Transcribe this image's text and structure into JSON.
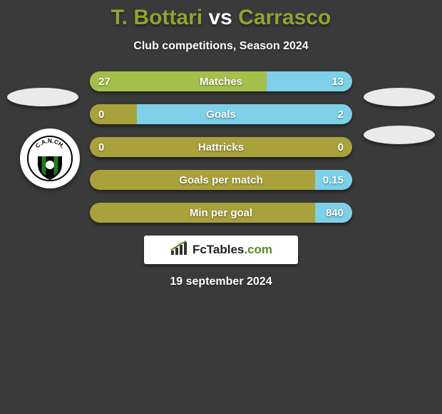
{
  "title": {
    "player1": "T. Bottari",
    "vs": "vs",
    "player2": "Carrasco",
    "player1_color": "#8fa532",
    "vs_color": "#ffffff",
    "player2_color": "#8fa532"
  },
  "subtitle": "Club competitions, Season 2024",
  "background_color": "#3a3a3a",
  "bar_colors": {
    "left_fill": "#a3c04a",
    "right_fill": "#7dd0e8",
    "base_olive": "#a9a23c"
  },
  "ellipse_color": "#eaeaea",
  "bars": [
    {
      "label": "Matches",
      "left_value": "27",
      "right_value": "13",
      "left_pct": 67.5,
      "right_pct": 32.5,
      "style": "split_green_blue"
    },
    {
      "label": "Goals",
      "left_value": "0",
      "right_value": "2",
      "left_pct": 18,
      "right_pct": 82,
      "style": "olive_left_blue_right"
    },
    {
      "label": "Hattricks",
      "left_value": "0",
      "right_value": "0",
      "left_pct": 100,
      "right_pct": 0,
      "style": "full_olive"
    },
    {
      "label": "Goals per match",
      "left_value": "",
      "right_value": "0.15",
      "left_pct": 0,
      "right_pct": 14,
      "style": "olive_base_blue_right"
    },
    {
      "label": "Min per goal",
      "left_value": "",
      "right_value": "840",
      "left_pct": 0,
      "right_pct": 14,
      "style": "olive_base_blue_right"
    }
  ],
  "logo": {
    "brand_black": "FcTables",
    "brand_green": ".com"
  },
  "date": "19 september 2024",
  "badge": {
    "text": "C.A.N.CH.",
    "outer_ring": "#000000",
    "stripe_green": "#1f7a1f",
    "stripe_black": "#000000",
    "center_bg": "#ffffff"
  }
}
